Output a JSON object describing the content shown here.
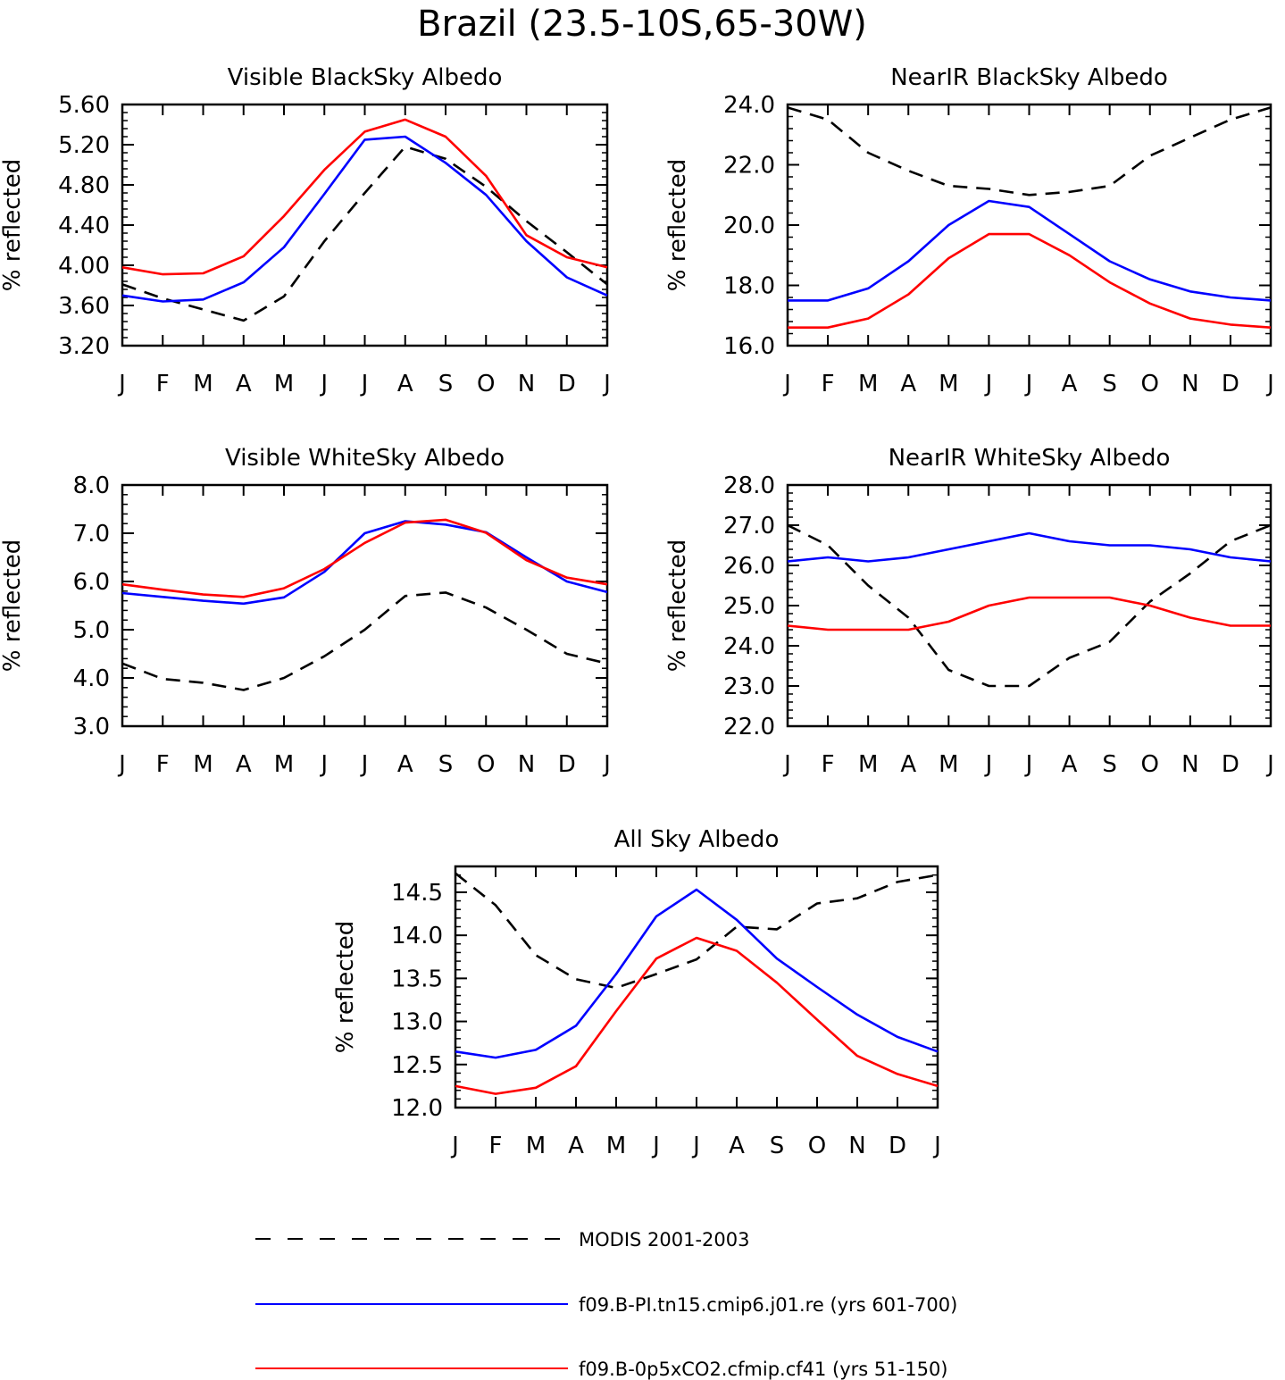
{
  "title": "Brazil (23.5-10S,65-30W)",
  "legend": [
    {
      "label": "MODIS 2001-2003",
      "color": "#000000",
      "dash": true
    },
    {
      "label": "f09.B-PI.tn15.cmip6.j01.re (yrs 601-700)",
      "color": "#0000ff",
      "dash": false
    },
    {
      "label": "f09.B-0p5xCO2.cfmip.cf41 (yrs 51-150)",
      "color": "#ff0000",
      "dash": false
    }
  ],
  "chart_data": [
    {
      "type": "line",
      "title": "Visible BlackSky Albedo",
      "ylabel": "% reflected",
      "categories": [
        "J",
        "F",
        "M",
        "A",
        "M",
        "J",
        "J",
        "A",
        "S",
        "O",
        "N",
        "D",
        "J"
      ],
      "ylim": [
        3.2,
        5.6
      ],
      "yticks": [
        "3.20",
        "3.60",
        "4.00",
        "4.40",
        "4.80",
        "5.20",
        "5.60"
      ],
      "series": [
        {
          "name": "MODIS 2001-2003",
          "color": "#000000",
          "dash": true,
          "values": [
            3.81,
            3.67,
            3.56,
            3.45,
            3.69,
            4.24,
            4.72,
            5.18,
            5.06,
            4.78,
            4.44,
            4.13,
            3.81
          ]
        },
        {
          "name": "f09.B-PI.tn15.cmip6.j01.re (yrs 601-700)",
          "color": "#0000ff",
          "dash": false,
          "values": [
            3.7,
            3.64,
            3.66,
            3.83,
            4.18,
            4.71,
            5.25,
            5.28,
            5.02,
            4.7,
            4.24,
            3.88,
            3.7
          ]
        },
        {
          "name": "f09.B-0p5xCO2.cfmip.cf41 (yrs 51-150)",
          "color": "#ff0000",
          "dash": false,
          "values": [
            3.98,
            3.91,
            3.92,
            4.09,
            4.49,
            4.95,
            5.33,
            5.45,
            5.28,
            4.89,
            4.3,
            4.08,
            3.98
          ]
        }
      ]
    },
    {
      "type": "line",
      "title": "NearIR BlackSky Albedo",
      "ylabel": "% reflected",
      "categories": [
        "J",
        "F",
        "M",
        "A",
        "M",
        "J",
        "J",
        "A",
        "S",
        "O",
        "N",
        "D",
        "J"
      ],
      "ylim": [
        16.0,
        24.0
      ],
      "yticks": [
        "16.0",
        "18.0",
        "20.0",
        "22.0",
        "24.0"
      ],
      "series": [
        {
          "name": "MODIS 2001-2003",
          "color": "#000000",
          "dash": true,
          "values": [
            23.9,
            23.5,
            22.4,
            21.8,
            21.3,
            21.2,
            21.0,
            21.1,
            21.3,
            22.3,
            22.9,
            23.5,
            23.9
          ]
        },
        {
          "name": "f09.B-PI.tn15.cmip6.j01.re (yrs 601-700)",
          "color": "#0000ff",
          "dash": false,
          "values": [
            17.5,
            17.5,
            17.9,
            18.8,
            20.0,
            20.8,
            20.6,
            19.7,
            18.8,
            18.2,
            17.8,
            17.6,
            17.5
          ]
        },
        {
          "name": "f09.B-0p5xCO2.cfmip.cf41 (yrs 51-150)",
          "color": "#ff0000",
          "dash": false,
          "values": [
            16.6,
            16.6,
            16.9,
            17.7,
            18.9,
            19.7,
            19.7,
            19.0,
            18.1,
            17.4,
            16.9,
            16.7,
            16.6
          ]
        }
      ]
    },
    {
      "type": "line",
      "title": "Visible WhiteSky Albedo",
      "ylabel": "% reflected",
      "categories": [
        "J",
        "F",
        "M",
        "A",
        "M",
        "J",
        "J",
        "A",
        "S",
        "O",
        "N",
        "D",
        "J"
      ],
      "ylim": [
        3.0,
        8.0
      ],
      "yticks": [
        "3.0",
        "4.0",
        "5.0",
        "6.0",
        "7.0",
        "8.0"
      ],
      "series": [
        {
          "name": "MODIS 2001-2003",
          "color": "#000000",
          "dash": true,
          "values": [
            4.3,
            3.98,
            3.9,
            3.75,
            4.0,
            4.45,
            5.0,
            5.7,
            5.77,
            5.46,
            5.0,
            4.5,
            4.3
          ]
        },
        {
          "name": "f09.B-PI.tn15.cmip6.j01.re (yrs 601-700)",
          "color": "#0000ff",
          "dash": false,
          "values": [
            5.76,
            5.68,
            5.6,
            5.54,
            5.67,
            6.2,
            7.0,
            7.25,
            7.18,
            7.02,
            6.5,
            6.0,
            5.78
          ]
        },
        {
          "name": "f09.B-0p5xCO2.cfmip.cf41 (yrs 51-150)",
          "color": "#ff0000",
          "dash": false,
          "values": [
            5.94,
            5.83,
            5.73,
            5.68,
            5.86,
            6.26,
            6.8,
            7.22,
            7.28,
            7.01,
            6.44,
            6.08,
            5.94
          ]
        }
      ]
    },
    {
      "type": "line",
      "title": "NearIR WhiteSky Albedo",
      "ylabel": "% reflected",
      "categories": [
        "J",
        "F",
        "M",
        "A",
        "M",
        "J",
        "J",
        "A",
        "S",
        "O",
        "N",
        "D",
        "J"
      ],
      "ylim": [
        22.0,
        28.0
      ],
      "yticks": [
        "22.0",
        "23.0",
        "24.0",
        "25.0",
        "26.0",
        "27.0",
        "28.0"
      ],
      "series": [
        {
          "name": "MODIS 2001-2003",
          "color": "#000000",
          "dash": true,
          "values": [
            27.0,
            26.5,
            25.5,
            24.7,
            23.4,
            23.0,
            23.0,
            23.7,
            24.1,
            25.1,
            25.8,
            26.6,
            27.0
          ]
        },
        {
          "name": "f09.B-PI.tn15.cmip6.j01.re (yrs 601-700)",
          "color": "#0000ff",
          "dash": false,
          "values": [
            26.1,
            26.2,
            26.1,
            26.2,
            26.4,
            26.6,
            26.8,
            26.6,
            26.5,
            26.5,
            26.4,
            26.2,
            26.1
          ]
        },
        {
          "name": "f09.B-0p5xCO2.cfmip.cf41 (yrs 51-150)",
          "color": "#ff0000",
          "dash": false,
          "values": [
            24.5,
            24.4,
            24.4,
            24.4,
            24.6,
            25.0,
            25.2,
            25.2,
            25.2,
            25.0,
            24.7,
            24.5,
            24.5
          ]
        }
      ]
    },
    {
      "type": "line",
      "title": "All Sky Albedo",
      "ylabel": "% reflected",
      "categories": [
        "J",
        "F",
        "M",
        "A",
        "M",
        "J",
        "J",
        "A",
        "S",
        "O",
        "N",
        "D",
        "J"
      ],
      "ylim": [
        12.0,
        14.8
      ],
      "yticks": [
        "12.0",
        "12.5",
        "13.0",
        "13.5",
        "14.0",
        "14.5"
      ],
      "series": [
        {
          "name": "MODIS 2001-2003",
          "color": "#000000",
          "dash": true,
          "values": [
            14.72,
            14.35,
            13.77,
            13.49,
            13.39,
            13.55,
            13.72,
            14.1,
            14.07,
            14.37,
            14.43,
            14.62,
            14.7
          ]
        },
        {
          "name": "f09.B-PI.tn15.cmip6.j01.re (yrs 601-700)",
          "color": "#0000ff",
          "dash": false,
          "values": [
            12.65,
            12.58,
            12.67,
            12.95,
            13.55,
            14.22,
            14.53,
            14.18,
            13.73,
            13.4,
            13.08,
            12.82,
            12.65
          ]
        },
        {
          "name": "f09.B-0p5xCO2.cfmip.cf41 (yrs 51-150)",
          "color": "#ff0000",
          "dash": false,
          "values": [
            12.25,
            12.16,
            12.23,
            12.48,
            13.12,
            13.73,
            13.97,
            13.82,
            13.45,
            13.02,
            12.6,
            12.39,
            12.25
          ]
        }
      ]
    }
  ]
}
